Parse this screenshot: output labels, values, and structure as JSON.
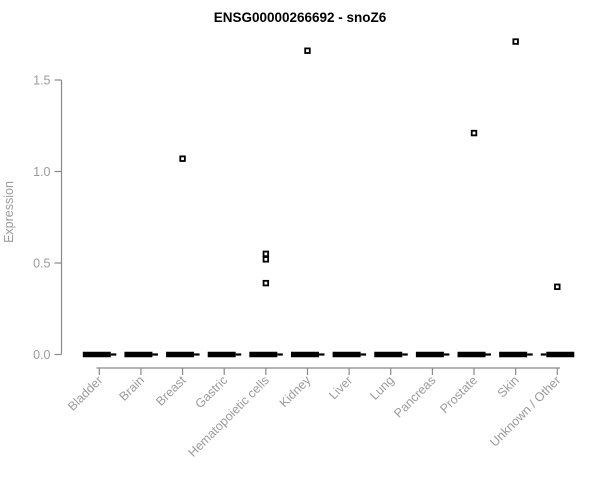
{
  "chart_data": {
    "type": "boxplot",
    "title": "ENSG00000266692 - snoZ6",
    "ylabel": "Expression",
    "xlabel": "",
    "ylim": [
      0,
      1.75
    ],
    "yticks": [
      0,
      0.5,
      1,
      1.5
    ],
    "grid": false,
    "legend": null,
    "categories": [
      "Bladder",
      "Brain",
      "Breast",
      "Gastric",
      "Hematopoietic cells",
      "Kidney",
      "Liver",
      "Lung",
      "Pancreas",
      "Prostate",
      "Skin",
      "Unknown / Other"
    ],
    "box_medians": [
      0,
      0,
      0,
      0,
      0,
      0,
      0,
      0,
      0,
      0,
      0,
      0
    ],
    "box_q1": [
      0,
      0,
      0,
      0,
      0,
      0,
      0,
      0,
      0,
      0,
      0,
      0
    ],
    "box_q3": [
      0,
      0,
      0,
      0,
      0,
      0,
      0,
      0,
      0,
      0,
      0,
      0
    ],
    "outliers": [
      [],
      [],
      [
        1.07
      ],
      [],
      [
        0.55,
        0.52,
        0.39
      ],
      [
        1.66
      ],
      [],
      [],
      [],
      [
        1.21
      ],
      [
        1.71
      ],
      [
        0.37
      ]
    ]
  },
  "colors": {
    "box": "#000000",
    "outlier_stroke": "#000000",
    "outlier_fill": "#ffffff",
    "axis_line": "#898989",
    "axis_text": "#9b9b9b",
    "title_text": "#000000",
    "background": "#ffffff"
  }
}
